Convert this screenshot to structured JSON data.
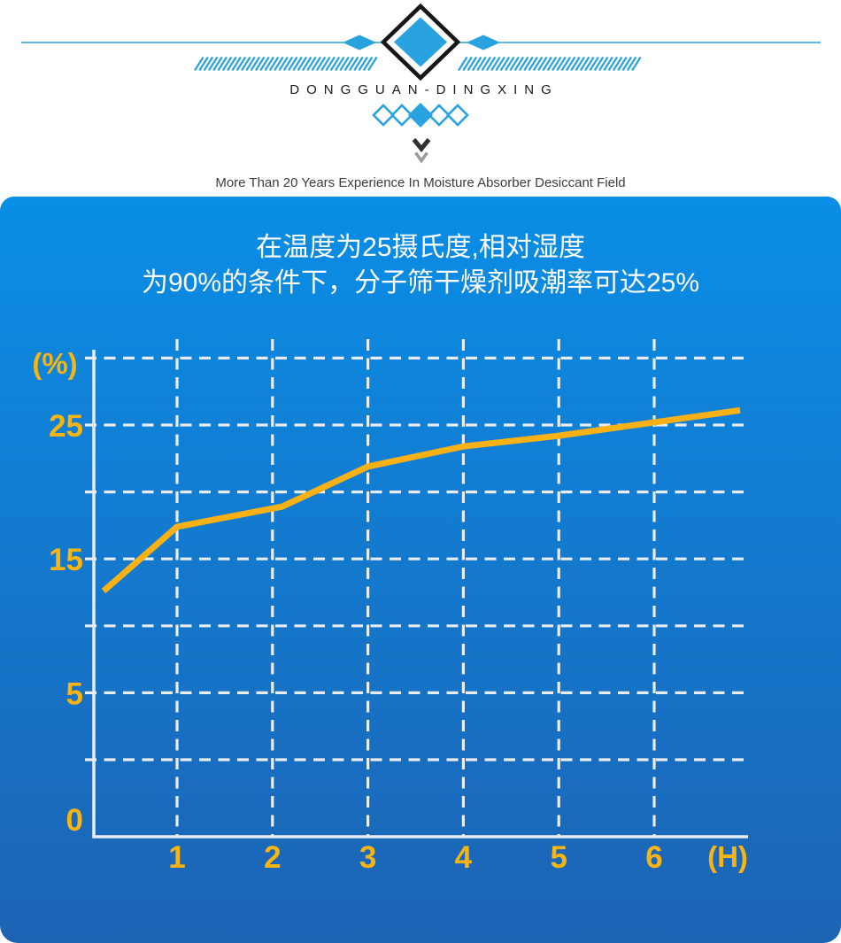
{
  "header": {
    "brand": "DONGGUAN-DINGXING",
    "tagline": "More Than 20 Years Experience In Moisture Absorber Desiccant Field"
  },
  "chart_data": {
    "type": "line",
    "title_line1": "在温度为25摄氏度,相对湿度",
    "title_line2": "为90%的条件下，分子筛干燥剂吸潮率可达25%",
    "xlabel": "(H)",
    "ylabel": "(%)",
    "x_ticks": [
      1,
      2,
      3,
      4,
      5,
      6
    ],
    "y_ticks": [
      25,
      15,
      5,
      0
    ],
    "y_gridlines": [
      30,
      25,
      20,
      15,
      10,
      5,
      0
    ],
    "xlim": [
      0.13,
      6.97
    ],
    "ylim": [
      -5.75,
      30.6
    ],
    "grid": "dashed",
    "legend_position": "none",
    "series": [
      {
        "points": [
          [
            0.23,
            12.6
          ],
          [
            1,
            17.4
          ],
          [
            2.1,
            18.9
          ],
          [
            3,
            21.9
          ],
          [
            4,
            23.4
          ],
          [
            5,
            24.2
          ],
          [
            6.9,
            26.1
          ]
        ]
      }
    ]
  },
  "colors": {
    "accent": "#29a3e0",
    "brand_text": "#1a1a1a",
    "tagline_text": "#3d3d3d",
    "chevron_dark": "#303030",
    "chevron_gray": "#9b9b9b",
    "panel_gradient_top": "#0a8ee6",
    "panel_gradient_bottom": "#1d63b4",
    "grid": "#e9ecf1",
    "line": "#f9b115",
    "axis_label": "#f8b413",
    "title_text": "#ffffff"
  }
}
